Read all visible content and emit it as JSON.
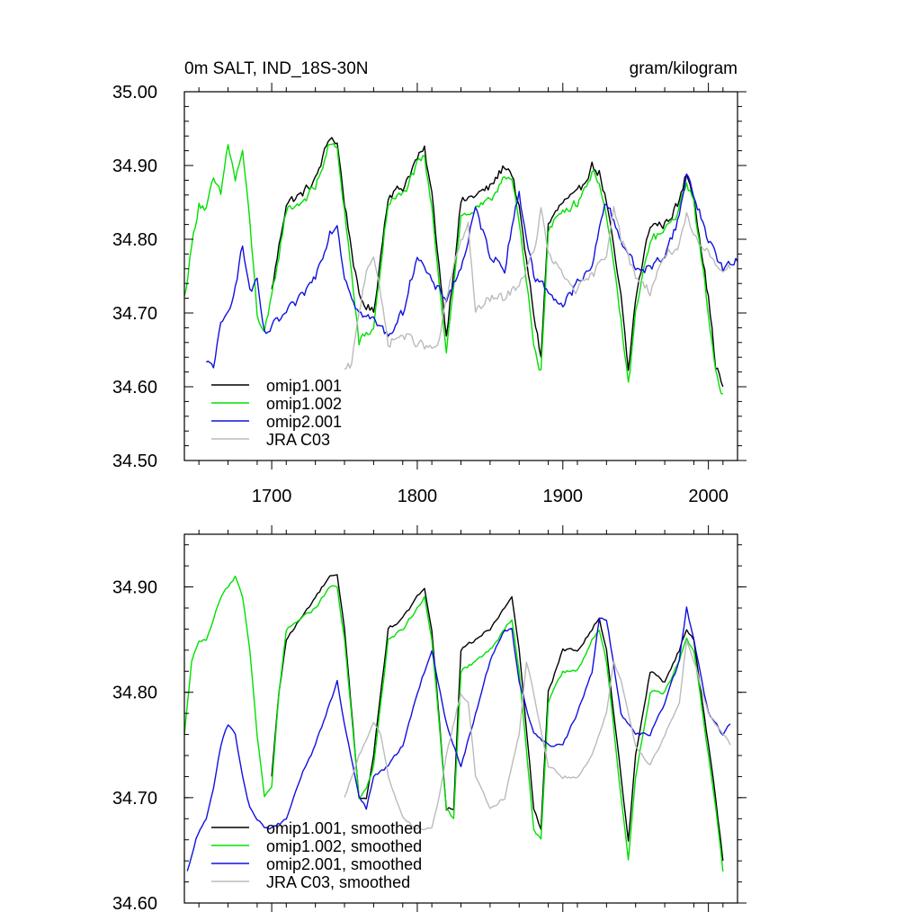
{
  "chart_data": [
    {
      "type": "line",
      "title": "0m SALT, IND_18S-30N",
      "units": "gram/kilogram",
      "xlim": [
        1640,
        2020
      ],
      "ylim": [
        34.5,
        35.0
      ],
      "xticks": [
        1700,
        1800,
        1900,
        2000
      ],
      "xtick_labels": [
        "1700",
        "1800",
        "1900",
        "2000"
      ],
      "yticks": [
        34.5,
        34.6,
        34.7,
        34.8,
        34.9,
        35.0
      ],
      "ytick_labels": [
        "34.50",
        "34.60",
        "34.70",
        "34.80",
        "34.90",
        "35.00"
      ],
      "series": [
        {
          "name": "omip1.001",
          "color": "#000000",
          "x_start": 1700,
          "x_end": 2010,
          "x": [
            1700,
            1710,
            1720,
            1730,
            1740,
            1745,
            1750,
            1760,
            1770,
            1780,
            1790,
            1800,
            1805,
            1810,
            1820,
            1830,
            1840,
            1850,
            1860,
            1865,
            1870,
            1880,
            1885,
            1890,
            1900,
            1910,
            1920,
            1925,
            1930,
            1940,
            1945,
            1950,
            1960,
            1970,
            1980,
            1985,
            1990,
            2000,
            2005,
            2010
          ],
          "y": [
            34.73,
            34.85,
            34.86,
            34.88,
            34.94,
            34.93,
            34.85,
            34.72,
            34.7,
            34.86,
            34.87,
            34.91,
            34.92,
            34.86,
            34.67,
            34.85,
            34.86,
            34.87,
            34.9,
            34.89,
            34.84,
            34.7,
            34.64,
            34.82,
            34.85,
            34.86,
            34.9,
            34.89,
            34.85,
            34.72,
            34.62,
            34.72,
            34.82,
            34.82,
            34.85,
            34.89,
            34.86,
            34.72,
            34.63,
            34.6
          ]
        },
        {
          "name": "omip1.002",
          "color": "#00e000",
          "x_start": 1640,
          "x_end": 2010,
          "x": [
            1640,
            1645,
            1650,
            1655,
            1660,
            1665,
            1670,
            1675,
            1680,
            1685,
            1690,
            1695,
            1700,
            1710,
            1720,
            1730,
            1740,
            1745,
            1750,
            1760,
            1770,
            1780,
            1790,
            1800,
            1805,
            1810,
            1820,
            1830,
            1840,
            1850,
            1860,
            1865,
            1870,
            1880,
            1885,
            1890,
            1900,
            1910,
            1920,
            1925,
            1930,
            1940,
            1945,
            1950,
            1960,
            1970,
            1980,
            1985,
            1990,
            2000,
            2005,
            2010
          ],
          "y": [
            34.72,
            34.79,
            34.85,
            34.84,
            34.88,
            34.86,
            34.93,
            34.88,
            34.92,
            34.82,
            34.7,
            34.67,
            34.72,
            34.84,
            34.85,
            34.87,
            34.93,
            34.92,
            34.84,
            34.66,
            34.68,
            34.85,
            34.86,
            34.9,
            34.91,
            34.84,
            34.65,
            34.83,
            34.84,
            34.85,
            34.89,
            34.88,
            34.82,
            34.66,
            34.62,
            34.81,
            34.84,
            34.85,
            34.89,
            34.88,
            34.83,
            34.69,
            34.6,
            34.7,
            34.8,
            34.81,
            34.84,
            34.88,
            34.85,
            34.7,
            34.62,
            34.59
          ]
        },
        {
          "name": "omip2.001",
          "color": "#1010e0",
          "x_start": 1655,
          "x_end": 2020,
          "x": [
            1655,
            1660,
            1665,
            1670,
            1675,
            1680,
            1685,
            1690,
            1695,
            1700,
            1710,
            1720,
            1730,
            1740,
            1745,
            1750,
            1760,
            1770,
            1780,
            1790,
            1800,
            1810,
            1820,
            1830,
            1840,
            1850,
            1860,
            1865,
            1870,
            1880,
            1890,
            1900,
            1910,
            1920,
            1925,
            1930,
            1940,
            1950,
            1960,
            1970,
            1980,
            1985,
            1990,
            2000,
            2010,
            2020
          ],
          "y": [
            34.63,
            34.63,
            34.68,
            34.7,
            34.74,
            34.79,
            34.73,
            34.74,
            34.67,
            34.68,
            34.7,
            34.72,
            34.75,
            34.81,
            34.82,
            34.75,
            34.7,
            34.69,
            34.67,
            34.7,
            34.78,
            34.74,
            34.72,
            34.76,
            34.84,
            34.78,
            34.76,
            34.82,
            34.86,
            34.75,
            34.73,
            34.71,
            34.74,
            34.76,
            34.82,
            34.85,
            34.8,
            34.76,
            34.76,
            34.78,
            34.83,
            34.89,
            34.86,
            34.8,
            34.76,
            34.77
          ]
        },
        {
          "name": "JRA C03",
          "color": "#bbbbbb",
          "x_start": 1750,
          "x_end": 2015,
          "x": [
            1750,
            1755,
            1760,
            1765,
            1770,
            1780,
            1790,
            1800,
            1810,
            1815,
            1820,
            1830,
            1835,
            1840,
            1850,
            1860,
            1870,
            1880,
            1885,
            1890,
            1900,
            1910,
            1920,
            1930,
            1935,
            1940,
            1950,
            1960,
            1970,
            1980,
            1985,
            1990,
            2000,
            2010,
            2015
          ],
          "y": [
            34.62,
            34.63,
            34.7,
            34.76,
            34.78,
            34.66,
            34.67,
            34.66,
            34.65,
            34.66,
            34.72,
            34.8,
            34.82,
            34.7,
            34.72,
            34.72,
            34.74,
            34.78,
            34.84,
            34.78,
            34.75,
            34.73,
            34.75,
            34.78,
            34.85,
            34.8,
            34.75,
            34.73,
            34.78,
            34.79,
            34.83,
            34.8,
            34.78,
            34.76,
            34.76
          ]
        }
      ],
      "legend": "bottom-left"
    },
    {
      "type": "line",
      "title": "",
      "xlim": [
        1640,
        2020
      ],
      "ylim": [
        34.6,
        34.95
      ],
      "xticks": [
        1700,
        1800,
        1900,
        2000
      ],
      "yticks": [
        34.6,
        34.7,
        34.8,
        34.9
      ],
      "ytick_labels": [
        "34.60",
        "34.70",
        "34.80",
        "34.90"
      ],
      "series": [
        {
          "name": "omip1.001, smoothed",
          "color": "#000000",
          "x": [
            1700,
            1705,
            1710,
            1720,
            1730,
            1740,
            1745,
            1750,
            1760,
            1765,
            1770,
            1780,
            1790,
            1800,
            1805,
            1810,
            1820,
            1825,
            1830,
            1840,
            1850,
            1860,
            1865,
            1870,
            1880,
            1885,
            1890,
            1900,
            1910,
            1920,
            1925,
            1930,
            1940,
            1945,
            1950,
            1960,
            1970,
            1980,
            1985,
            1990,
            2000,
            2005,
            2010
          ],
          "y": [
            34.72,
            34.8,
            34.85,
            34.87,
            34.89,
            34.91,
            34.91,
            34.86,
            34.7,
            34.7,
            34.74,
            34.86,
            34.87,
            34.89,
            34.9,
            34.86,
            34.69,
            34.69,
            34.84,
            34.85,
            34.86,
            34.88,
            34.89,
            34.84,
            34.69,
            34.67,
            34.8,
            34.84,
            34.84,
            34.86,
            34.87,
            34.84,
            34.72,
            34.66,
            34.74,
            34.82,
            34.81,
            34.84,
            34.86,
            34.85,
            34.75,
            34.7,
            34.64
          ]
        },
        {
          "name": "omip1.002, smoothed",
          "color": "#00e000",
          "x": [
            1640,
            1645,
            1650,
            1655,
            1660,
            1665,
            1670,
            1675,
            1680,
            1685,
            1690,
            1695,
            1700,
            1705,
            1710,
            1720,
            1730,
            1740,
            1745,
            1750,
            1760,
            1765,
            1770,
            1780,
            1790,
            1800,
            1805,
            1810,
            1820,
            1825,
            1830,
            1840,
            1850,
            1860,
            1865,
            1870,
            1880,
            1885,
            1890,
            1900,
            1910,
            1920,
            1925,
            1930,
            1940,
            1945,
            1950,
            1960,
            1970,
            1980,
            1985,
            1990,
            2000,
            2005,
            2010
          ],
          "y": [
            34.76,
            34.83,
            34.85,
            34.85,
            34.87,
            34.89,
            34.9,
            34.91,
            34.89,
            34.84,
            34.76,
            34.7,
            34.71,
            34.8,
            34.86,
            34.87,
            34.88,
            34.9,
            34.9,
            34.85,
            34.7,
            34.71,
            34.73,
            34.85,
            34.86,
            34.88,
            34.89,
            34.85,
            34.69,
            34.68,
            34.82,
            34.83,
            34.84,
            34.86,
            34.87,
            34.82,
            34.67,
            34.66,
            34.79,
            34.82,
            34.82,
            34.85,
            34.86,
            34.83,
            34.7,
            34.64,
            34.72,
            34.8,
            34.8,
            34.83,
            34.85,
            34.84,
            34.74,
            34.69,
            34.63
          ]
        },
        {
          "name": "omip2.001, smoothed",
          "color": "#1010e0",
          "x": [
            1642,
            1648,
            1655,
            1660,
            1665,
            1670,
            1675,
            1680,
            1685,
            1690,
            1695,
            1700,
            1710,
            1715,
            1720,
            1730,
            1740,
            1745,
            1750,
            1760,
            1765,
            1770,
            1780,
            1790,
            1800,
            1805,
            1810,
            1820,
            1830,
            1840,
            1850,
            1860,
            1865,
            1870,
            1880,
            1890,
            1900,
            1910,
            1920,
            1925,
            1930,
            1940,
            1950,
            1960,
            1970,
            1980,
            1985,
            1990,
            2000,
            2010,
            2015
          ],
          "y": [
            34.63,
            34.66,
            34.68,
            34.71,
            34.75,
            34.77,
            34.76,
            34.72,
            34.69,
            34.68,
            34.67,
            34.67,
            34.68,
            34.7,
            34.72,
            34.75,
            34.79,
            34.81,
            34.77,
            34.7,
            34.69,
            34.72,
            34.73,
            34.75,
            34.8,
            34.82,
            34.84,
            34.77,
            34.73,
            34.78,
            34.83,
            34.86,
            34.86,
            34.81,
            34.76,
            34.75,
            34.75,
            34.78,
            34.82,
            34.87,
            34.87,
            34.78,
            34.76,
            34.76,
            34.79,
            34.83,
            34.88,
            34.85,
            34.78,
            34.76,
            34.77
          ]
        },
        {
          "name": "JRA C03, smoothed",
          "color": "#bbbbbb",
          "x": [
            1750,
            1755,
            1760,
            1770,
            1775,
            1780,
            1790,
            1800,
            1810,
            1815,
            1820,
            1830,
            1835,
            1840,
            1850,
            1860,
            1870,
            1875,
            1880,
            1890,
            1900,
            1910,
            1920,
            1930,
            1935,
            1940,
            1950,
            1960,
            1970,
            1980,
            1985,
            1990,
            2000,
            2010,
            2015
          ],
          "y": [
            34.7,
            34.72,
            34.74,
            34.77,
            34.76,
            34.72,
            34.68,
            34.67,
            34.67,
            34.7,
            34.74,
            34.8,
            34.79,
            34.72,
            34.69,
            34.7,
            34.76,
            34.83,
            34.8,
            34.73,
            34.72,
            34.72,
            34.74,
            34.78,
            34.83,
            34.81,
            34.75,
            34.73,
            34.76,
            34.79,
            34.85,
            34.83,
            34.78,
            34.76,
            34.75
          ]
        }
      ],
      "legend": "bottom-left"
    }
  ]
}
